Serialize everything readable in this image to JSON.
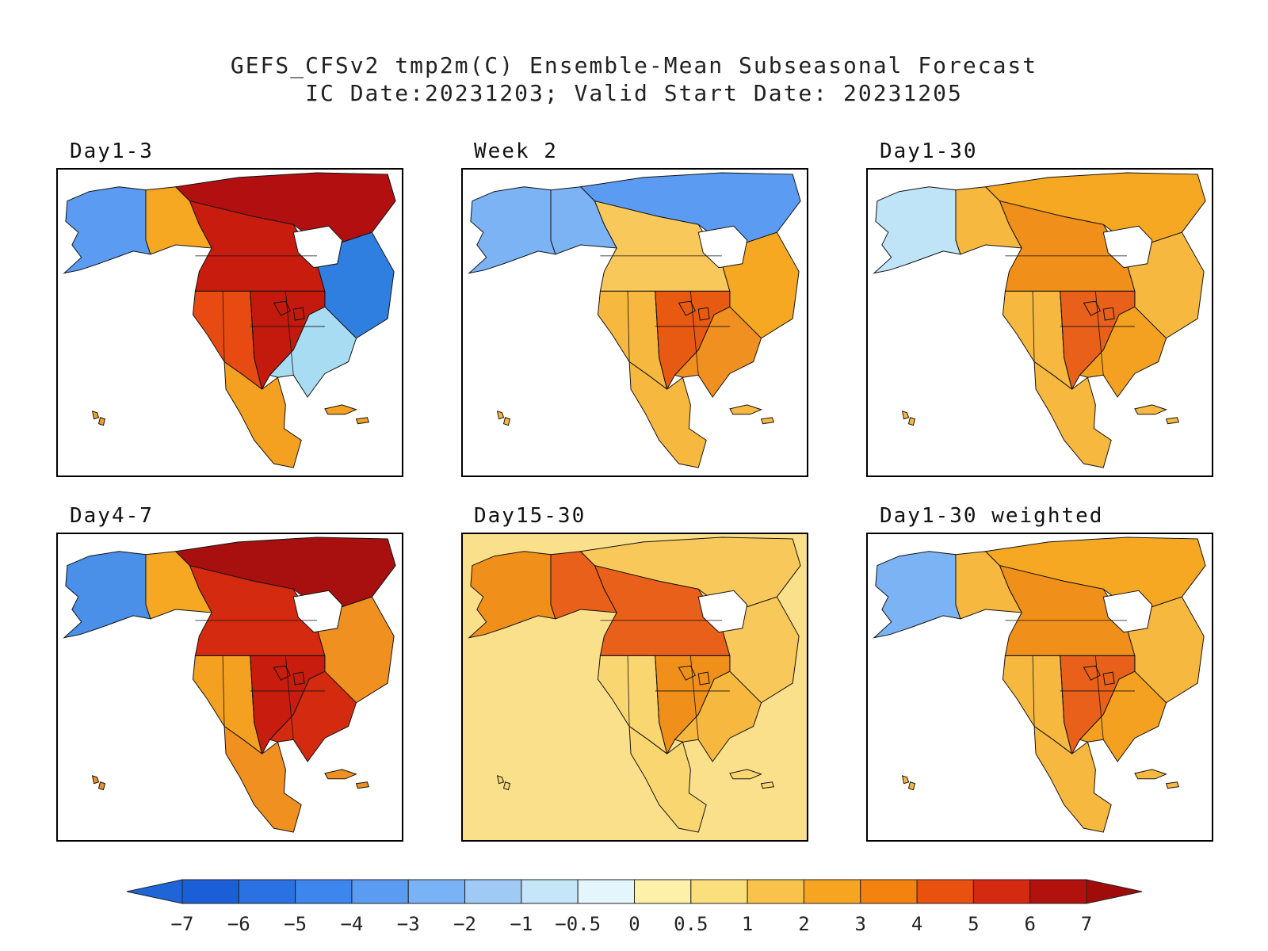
{
  "title": {
    "line1": "GEFS_CFSv2 tmp2m(C) Ensemble-Mean Subseasonal Forecast",
    "line2": "IC Date:20231203; Valid Start Date: 20231205"
  },
  "panels": [
    {
      "label": "Day1-3",
      "regions": {
        "alaska": "#5b9cf2",
        "yukon": "#f7a823",
        "north_canada": "#b21010",
        "west_canada": "#c81d0e",
        "east_canada": "#2f7fe0",
        "us_west": "#e84b12",
        "us_central": "#c41a0e",
        "us_east": "#a8dcf2",
        "mexico": "#f4a020",
        "ocean": "#ffffff"
      }
    },
    {
      "label": "Week 2",
      "regions": {
        "alaska": "#7bb3f5",
        "yukon": "#7bb3f5",
        "north_canada": "#5b9cf2",
        "west_canada": "#f9c85a",
        "east_canada": "#f7a823",
        "us_west": "#f7b840",
        "us_central": "#e85a12",
        "us_east": "#f09020",
        "mexico": "#f7b840",
        "ocean": "#ffffff"
      }
    },
    {
      "label": "Day1-30",
      "regions": {
        "alaska": "#bfe4f8",
        "yukon": "#f7b840",
        "north_canada": "#f7a823",
        "west_canada": "#f0901a",
        "east_canada": "#f7b840",
        "us_west": "#f7b840",
        "us_central": "#e8601a",
        "us_east": "#f4a020",
        "mexico": "#f7b840",
        "ocean": "#ffffff"
      }
    },
    {
      "label": "Day4-7",
      "regions": {
        "alaska": "#4a8fe8",
        "yukon": "#f7a823",
        "north_canada": "#a81010",
        "west_canada": "#d42a10",
        "east_canada": "#f09020",
        "us_west": "#f4a020",
        "us_central": "#c81d0e",
        "us_east": "#d42a10",
        "mexico": "#f09020",
        "ocean": "#ffffff"
      }
    },
    {
      "label": "Day15-30",
      "regions": {
        "alaska": "#f0901a",
        "yukon": "#e8601a",
        "north_canada": "#f9c85a",
        "west_canada": "#e8601a",
        "east_canada": "#f9c85a",
        "us_west": "#f9d670",
        "us_central": "#f0901a",
        "us_east": "#f7b840",
        "mexico": "#f9d670",
        "ocean": "#fbe08c"
      }
    },
    {
      "label": "Day1-30 weighted",
      "regions": {
        "alaska": "#7bb3f5",
        "yukon": "#f7b840",
        "north_canada": "#f7a823",
        "west_canada": "#f0901a",
        "east_canada": "#f7b840",
        "us_west": "#f7b840",
        "us_central": "#e8601a",
        "us_east": "#f4a020",
        "mexico": "#f7b840",
        "ocean": "#ffffff"
      }
    }
  ],
  "colorbar": {
    "ticks": [
      "-7",
      "-6",
      "-5",
      "-4",
      "-3",
      "-2",
      "-1",
      "-0.5",
      "0",
      "0.5",
      "1",
      "2",
      "3",
      "4",
      "5",
      "6",
      "7"
    ],
    "colors": [
      "#1a5fd8",
      "#2a72e3",
      "#3d86ee",
      "#5a9cf2",
      "#79b2f5",
      "#9fcaf6",
      "#c4e6f8",
      "#e4f6fb",
      "#fdf0a8",
      "#fbdf7c",
      "#f9c24a",
      "#f7a421",
      "#f3820f",
      "#e9520e",
      "#d42a10",
      "#b3110d"
    ],
    "low_arrow_color": "#1e66d8",
    "high_arrow_color": "#a10c0b"
  }
}
